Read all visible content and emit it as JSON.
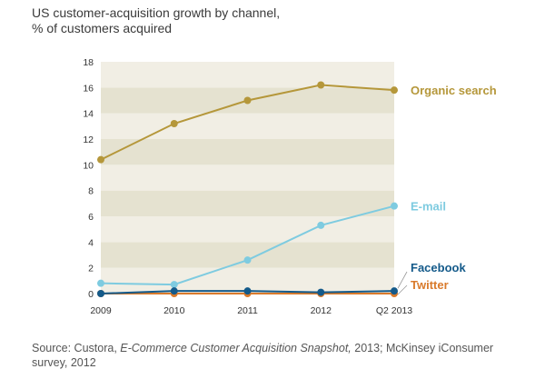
{
  "title": {
    "line1": "US customer-acquisition growth by channel,",
    "line2": "% of customers acquired"
  },
  "source": {
    "prefix": "Source: Custora, ",
    "italic": "E-Commerce Customer Acquisition Snapshot,",
    "suffix": " 2013; McKinsey iConsumer survey, 2012"
  },
  "chart_data": {
    "type": "line",
    "categories": [
      "2009",
      "2010",
      "2011",
      "2012",
      "Q2 2013"
    ],
    "ylim": [
      0,
      18
    ],
    "yticks": [
      0,
      2,
      4,
      6,
      8,
      10,
      12,
      14,
      16,
      18
    ],
    "grid": "alternating horizontal bands",
    "legend": "labels at right end of each line",
    "series": [
      {
        "name": "Organic search",
        "color": "#b5973a",
        "values": [
          10.4,
          13.2,
          15.0,
          16.2,
          15.8
        ]
      },
      {
        "name": "E-mail",
        "color": "#7ecbe0",
        "values": [
          0.8,
          0.7,
          2.6,
          5.3,
          6.8
        ]
      },
      {
        "name": "Facebook",
        "color": "#145a8a",
        "values": [
          0.0,
          0.2,
          0.2,
          0.1,
          0.2
        ]
      },
      {
        "name": "Twitter",
        "color": "#d97a2b",
        "values": [
          0.0,
          0.0,
          0.0,
          0.0,
          0.0
        ]
      }
    ],
    "band_colors": {
      "light": "#f1eee4",
      "dark": "#e5e2d0"
    }
  }
}
